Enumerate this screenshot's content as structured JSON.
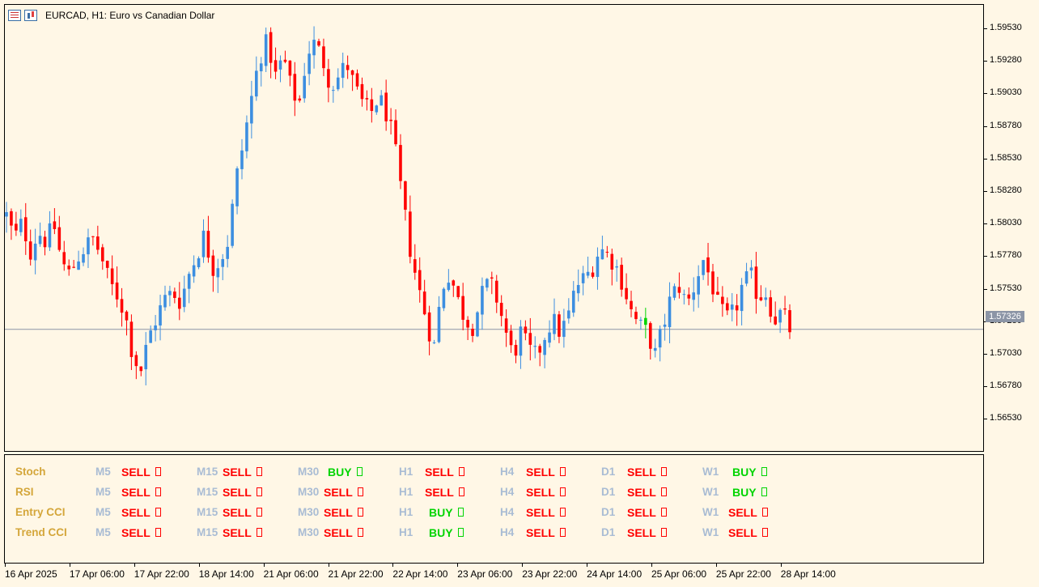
{
  "window": {
    "symbol": "EURCAD",
    "timeframe": "H1",
    "title": "EURCAD, H1:  Euro vs Canadian Dollar",
    "icons": [
      "list-icon",
      "chart-bars-icon"
    ]
  },
  "colors": {
    "background": "#fff7e6",
    "bull_candle": "#3c8ee0",
    "bear_candle": "#ff0000",
    "neutral_candle": "#00d400",
    "sell": "#ff0000",
    "buy": "#00d400",
    "indicator_name": "#d4a63a",
    "timeframe_label": "#a9bcd4",
    "current_price_line": "#8c95a6"
  },
  "price_axis": {
    "labels": [
      "1.59530",
      "1.59280",
      "1.59030",
      "1.58780",
      "1.58530",
      "1.58280",
      "1.58030",
      "1.57780",
      "1.57530",
      "1.57280",
      "1.57030",
      "1.56780",
      "1.56530"
    ],
    "current_price": "1.57326"
  },
  "time_axis": {
    "labels": [
      "16 Apr 2025",
      "17 Apr 06:00",
      "17 Apr 22:00",
      "18 Apr 14:00",
      "21 Apr 06:00",
      "21 Apr 22:00",
      "22 Apr 14:00",
      "23 Apr 06:00",
      "23 Apr 22:00",
      "24 Apr 14:00",
      "25 Apr 06:00",
      "25 Apr 22:00",
      "28 Apr 14:00"
    ]
  },
  "indicator_panel": {
    "timeframes": [
      "M5",
      "M15",
      "M30",
      "H1",
      "H4",
      "D1",
      "W1"
    ],
    "rows": [
      {
        "name": "Stoch",
        "signals": [
          "SELL",
          "SELL",
          "BUY",
          "SELL",
          "SELL",
          "SELL",
          "BUY"
        ]
      },
      {
        "name": "RSI",
        "signals": [
          "SELL",
          "SELL",
          "SELL",
          "SELL",
          "SELL",
          "SELL",
          "BUY"
        ]
      },
      {
        "name": "Entry CCI",
        "signals": [
          "SELL",
          "SELL",
          "SELL",
          "BUY",
          "SELL",
          "SELL",
          "SELL"
        ]
      },
      {
        "name": "Trend CCI",
        "signals": [
          "SELL",
          "SELL",
          "SELL",
          "BUY",
          "SELL",
          "SELL",
          "SELL"
        ]
      }
    ]
  },
  "chart_data": {
    "type": "candlestick",
    "ylim": [
      1.5643,
      1.5972
    ],
    "x": [
      "16 Apr 2025",
      "17 Apr 06:00",
      "17 Apr 22:00",
      "18 Apr 14:00",
      "21 Apr 06:00",
      "21 Apr 22:00",
      "22 Apr 14:00",
      "23 Apr 06:00",
      "23 Apr 22:00",
      "24 Apr 14:00",
      "25 Apr 06:00",
      "25 Apr 22:00",
      "28 Apr 14:00"
    ],
    "close_path": [
      1.5817,
      1.58,
      1.5812,
      1.579,
      1.5805,
      1.5798,
      1.581,
      1.5782,
      1.5773,
      1.5786,
      1.5794,
      1.58,
      1.5786,
      1.5767,
      1.5758,
      1.5744,
      1.5712,
      1.5703,
      1.5727,
      1.5742,
      1.5755,
      1.576,
      1.5753,
      1.5773,
      1.5787,
      1.5803,
      1.5778,
      1.5784,
      1.5798,
      1.5843,
      1.5873,
      1.5905,
      1.5935,
      1.5946,
      1.592,
      1.5935,
      1.591,
      1.59,
      1.5938,
      1.5945,
      1.5932,
      1.5913,
      1.592,
      1.593,
      1.5912,
      1.59,
      1.5892,
      1.5905,
      1.5893,
      1.587,
      1.583,
      1.5793,
      1.5765,
      1.5742,
      1.5718,
      1.5763,
      1.5775,
      1.5755,
      1.574,
      1.5735,
      1.5757,
      1.5768,
      1.5755,
      1.5733,
      1.5712,
      1.573,
      1.5717,
      1.5712,
      1.5728,
      1.574,
      1.573,
      1.5742,
      1.5765,
      1.577,
      1.5778,
      1.5793,
      1.5788,
      1.578,
      1.5765,
      1.5745,
      1.5735,
      1.573,
      1.5714,
      1.5735,
      1.5757,
      1.5765,
      1.575,
      1.5766,
      1.5785,
      1.577,
      1.5748,
      1.574,
      1.5745,
      1.5765,
      1.5773,
      1.5757,
      1.576,
      1.574,
      1.5745,
      1.5733
    ]
  }
}
